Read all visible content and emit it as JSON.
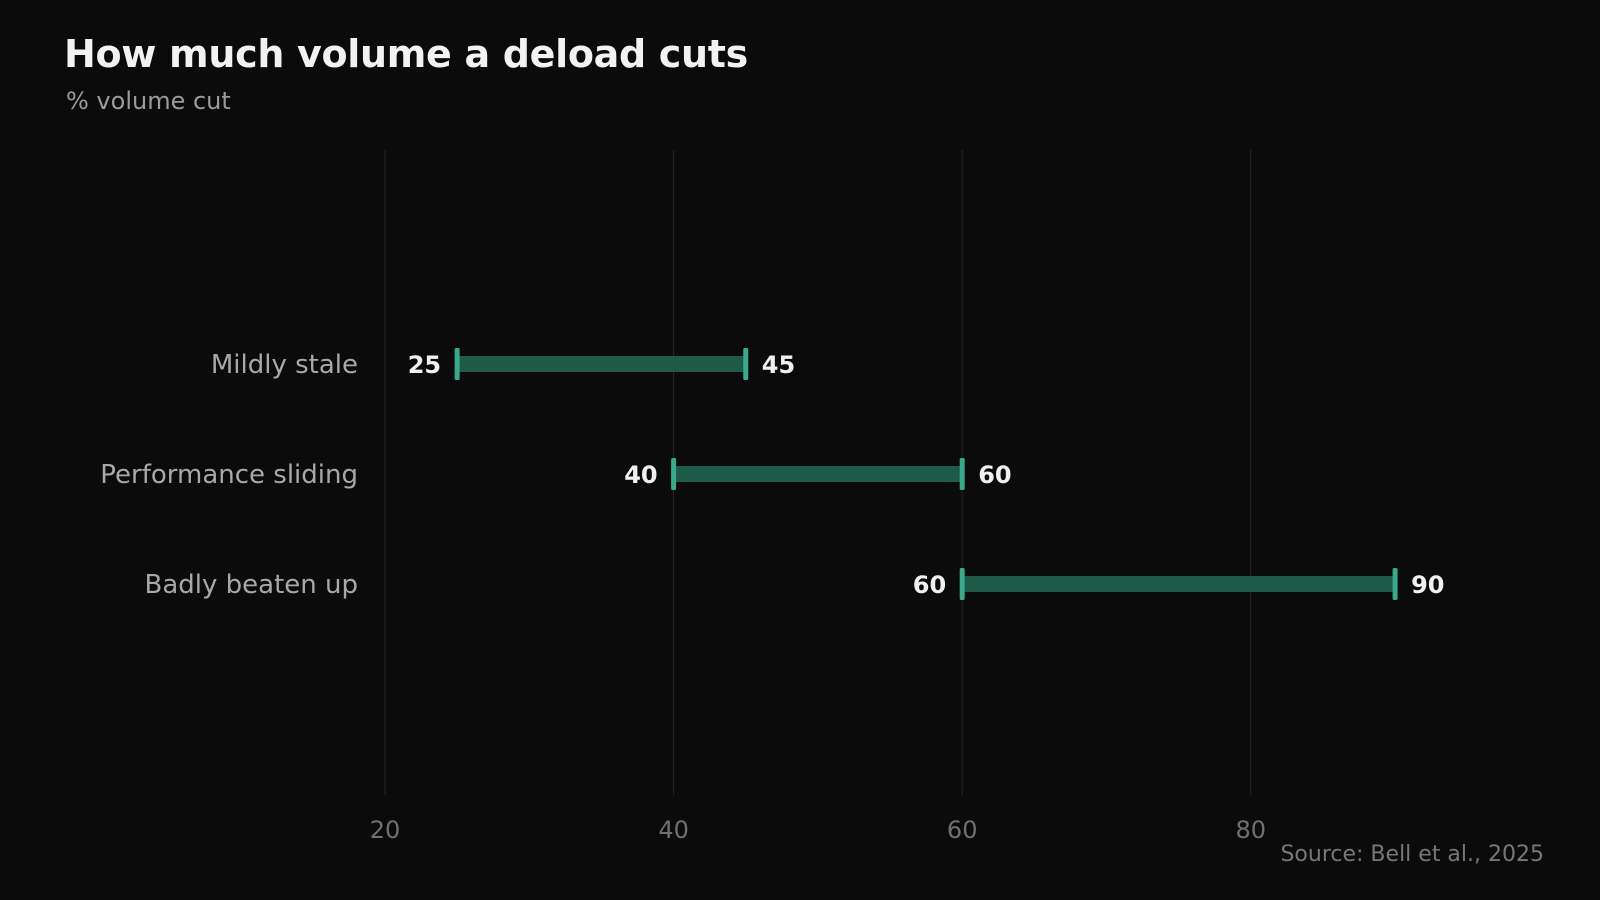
{
  "header": {
    "title": "How much volume a deload cuts",
    "subtitle": "% volume cut"
  },
  "footer": {
    "source": "Source: Bell et al., 2025"
  },
  "colors": {
    "background": "#0b0b0b",
    "bar": "#1e5a48",
    "endcap": "#3aa88a",
    "grid": "#262626"
  },
  "chart_data": {
    "type": "range-bar",
    "orientation": "horizontal",
    "categories": [
      "Mildly stale",
      "Performance sliding",
      "Badly beaten up"
    ],
    "ranges": [
      {
        "category": "Mildly stale",
        "low": 25,
        "high": 45
      },
      {
        "category": "Performance sliding",
        "low": 40,
        "high": 60
      },
      {
        "category": "Badly beaten up",
        "low": 60,
        "high": 90
      }
    ],
    "x_ticks": [
      20,
      40,
      60,
      80
    ],
    "xlim": [
      20,
      100
    ],
    "grid": "vertical",
    "title": "How much volume a deload cuts",
    "subtitle": "% volume cut"
  }
}
